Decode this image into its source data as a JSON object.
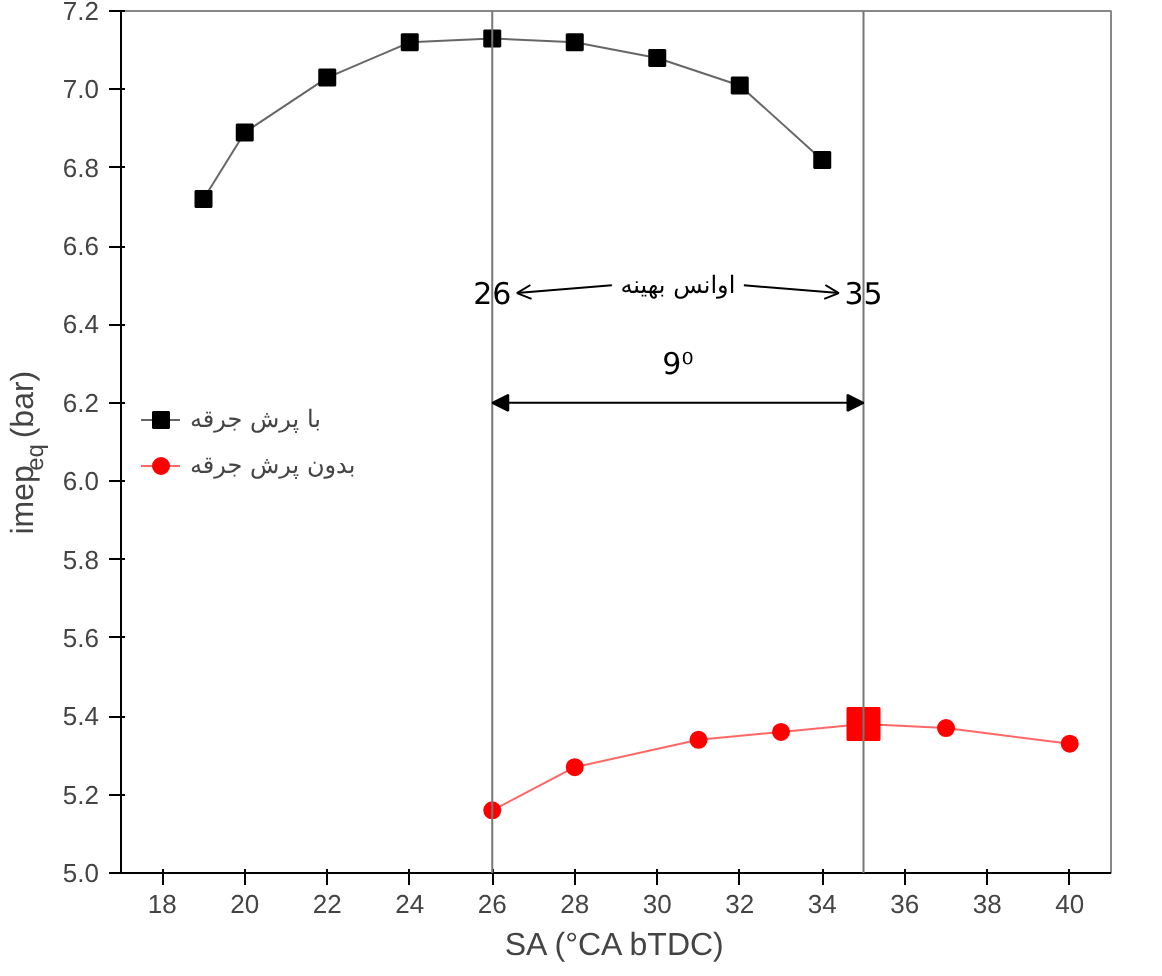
{
  "chart_data": {
    "type": "line",
    "xlabel": "SA (°CA bTDC)",
    "ylabel": "imep$_{eq}$ (bar)",
    "xlim": [
      17,
      41
    ],
    "xticks": [
      18,
      20,
      22,
      24,
      26,
      28,
      30,
      32,
      34,
      36,
      38,
      40
    ],
    "ylim": [
      5.0,
      7.2
    ],
    "yticks": [
      {
        "value": 5,
        "label": "5.0"
      },
      5.2,
      5.4,
      5.6,
      5.8,
      {
        "value": 6,
        "label": "6.0"
      },
      6.2,
      6.4,
      6.6,
      6.8,
      {
        "value": 7,
        "label": "7.0"
      },
      7.2
    ],
    "series": [
      {
        "name": "با پرش جرقه",
        "color": "#000000",
        "marker": "square",
        "x": [
          19,
          20,
          22,
          24,
          26,
          28,
          30,
          32,
          34
        ],
        "values": [
          6.72,
          6.89,
          7.03,
          7.12,
          7.13,
          7.12,
          7.08,
          7.01,
          6.82
        ]
      },
      {
        "name": "بدون پرش جرقه",
        "color": "#ff0000",
        "marker": "circle",
        "x": [
          26,
          28,
          31,
          33,
          35,
          37,
          40
        ],
        "values": [
          5.16,
          5.27,
          5.34,
          5.36,
          5.38,
          5.37,
          5.33
        ]
      },
      {
        "type": "scatter",
        "color": "#ff0000",
        "marker": "square",
        "x": [
          35
        ],
        "values": [
          5.38
        ]
      }
    ],
    "ref_lines": [
      {
        "axis": "x",
        "value": 26
      },
      {
        "axis": "x",
        "value": 35
      }
    ],
    "annotations": [
      {
        "text": "26",
        "x": 26,
        "y": 6.48
      },
      {
        "text": "35",
        "x": 35,
        "y": 6.48
      },
      "اوانس بهینه",
      {
        "text": "9⁰",
        "x": 30.5,
        "y": 6.3
      }
    ],
    "legend": "left",
    "grid": false
  }
}
